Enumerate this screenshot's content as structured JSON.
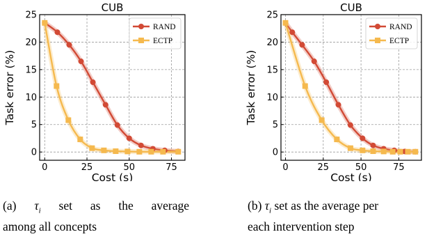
{
  "chart_data": [
    {
      "type": "line",
      "title": "CUB",
      "xlabel": "Cost (s)",
      "ylabel": "Task error (%)",
      "xlim": [
        -3,
        83
      ],
      "ylim": [
        -1.5,
        25
      ],
      "xticks": [
        0,
        25,
        50,
        75
      ],
      "yticks": [
        0,
        5,
        10,
        15,
        20,
        25
      ],
      "grid": true,
      "legend_position": "top-right",
      "series": [
        {
          "name": "RAND",
          "color": "#d24a35",
          "marker": "circle",
          "x": [
            0,
            7.5,
            14.5,
            21.5,
            28.5,
            36,
            43,
            50,
            57,
            64,
            71,
            79
          ],
          "y": [
            23.5,
            21.8,
            19.5,
            16.5,
            12.7,
            8.6,
            4.9,
            2.5,
            1.2,
            0.6,
            0.3,
            0.1
          ]
        },
        {
          "name": "ECTP",
          "color": "#f5b94e",
          "marker": "square",
          "x": [
            0,
            7,
            14,
            21,
            28,
            35,
            42,
            49,
            56,
            63,
            70,
            79
          ],
          "y": [
            23.5,
            12.0,
            5.8,
            2.3,
            0.7,
            0.3,
            0.15,
            0.1,
            0.05,
            0.05,
            0.05,
            0.05
          ]
        }
      ],
      "caption": {
        "label": "(a)",
        "line1": "set as the average",
        "line2": "among all concepts"
      }
    },
    {
      "type": "line",
      "title": "CUB",
      "xlabel": "Cost (s)",
      "ylabel": "Task error (%)",
      "xlim": [
        -3,
        90
      ],
      "ylim": [
        -1.5,
        25
      ],
      "xticks": [
        0,
        25,
        50,
        75
      ],
      "yticks": [
        0,
        5,
        10,
        15,
        20,
        25
      ],
      "grid": true,
      "legend_position": "top-right",
      "series": [
        {
          "name": "RAND",
          "color": "#d24a35",
          "marker": "circle",
          "x": [
            0,
            4.5,
            11,
            19,
            27,
            35,
            43,
            51,
            58,
            65,
            72,
            79,
            86
          ],
          "y": [
            23.5,
            21.8,
            19.5,
            16.5,
            12.7,
            8.6,
            4.9,
            2.5,
            1.2,
            0.6,
            0.3,
            0.1,
            0.05
          ]
        },
        {
          "name": "ECTP",
          "color": "#f5b94e",
          "marker": "square",
          "x": [
            0,
            13,
            24,
            34,
            43,
            51,
            58,
            65,
            71,
            76,
            81,
            86
          ],
          "y": [
            23.5,
            12.0,
            5.8,
            2.3,
            0.7,
            0.3,
            0.15,
            0.1,
            0.05,
            0.05,
            0.05,
            0.05
          ]
        }
      ],
      "caption": {
        "label": "(b)",
        "line1": "set as the average per",
        "line2": "each intervention step"
      }
    }
  ]
}
